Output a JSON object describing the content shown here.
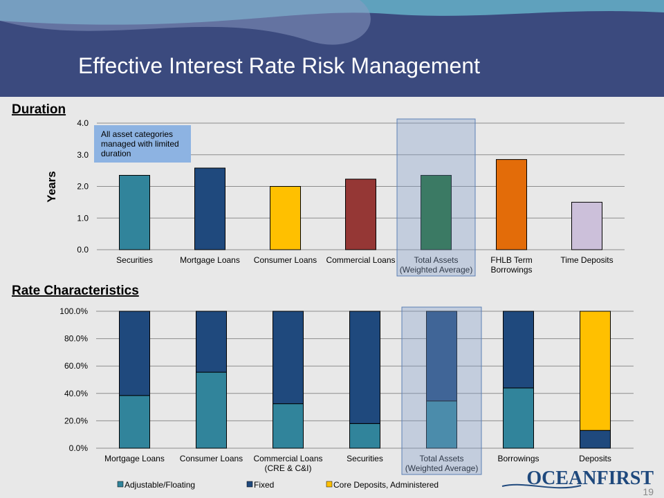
{
  "title": "Effective Interest Rate Risk Management",
  "page_number": "19",
  "logo": "OCEANFIRST",
  "chart_data": [
    {
      "type": "bar",
      "title": "Duration",
      "y_label": "Years",
      "categories": [
        "Securities",
        "Mortgage Loans",
        "Consumer Loans",
        "Commercial Loans",
        "Total Assets\n(Weighted Average)",
        "FHLB Term\nBorrowings",
        "Time Deposits"
      ],
      "values": [
        2.35,
        2.58,
        2.0,
        2.23,
        2.35,
        2.85,
        1.5
      ],
      "colors": [
        "#31849b",
        "#1f497d",
        "#ffc000",
        "#953735",
        "#17692f",
        "#e36c09",
        "#ccc0da"
      ],
      "ylim": [
        0,
        4
      ],
      "yticks": [
        {
          "value": 0,
          "label": "0.0"
        },
        {
          "value": 1,
          "label": "1.0"
        },
        {
          "value": 2,
          "label": "2.0"
        },
        {
          "value": 3,
          "label": "3.0"
        },
        {
          "value": 4,
          "label": "4.0"
        }
      ],
      "grid": true,
      "highlight_index": 4,
      "annotation": "All asset categories\nmanaged with limited\nduration"
    },
    {
      "type": "stacked_bar",
      "title": "Rate Characteristics",
      "categories": [
        "Mortgage Loans",
        "Consumer Loans",
        "Commercial Loans\n(CRE & C&I)",
        "Securities",
        "Total Assets\n(Weighted Average)",
        "Borrowings",
        "Deposits"
      ],
      "series": [
        {
          "name": "Adjustable/Floating",
          "color": "#31849b",
          "values": [
            38.5,
            55.5,
            32.5,
            18,
            34.5,
            44,
            null
          ]
        },
        {
          "name": "Fixed",
          "color": "#1f497d",
          "values": [
            61.5,
            44.5,
            67.5,
            82,
            65.5,
            56,
            13
          ]
        },
        {
          "name": "Core Deposits, Administered",
          "color": "#ffc000",
          "values": [
            null,
            null,
            null,
            null,
            null,
            null,
            87
          ]
        }
      ],
      "ylim": [
        0,
        100
      ],
      "yticks": [
        {
          "value": 0,
          "label": "0.0%"
        },
        {
          "value": 20,
          "label": "20.0%"
        },
        {
          "value": 40,
          "label": "40.0%"
        },
        {
          "value": 60,
          "label": "60.0%"
        },
        {
          "value": 80,
          "label": "80.0%"
        },
        {
          "value": 100,
          "label": "100.0%"
        }
      ],
      "grid": true,
      "highlight_index": 4,
      "legend": "bottom"
    }
  ]
}
